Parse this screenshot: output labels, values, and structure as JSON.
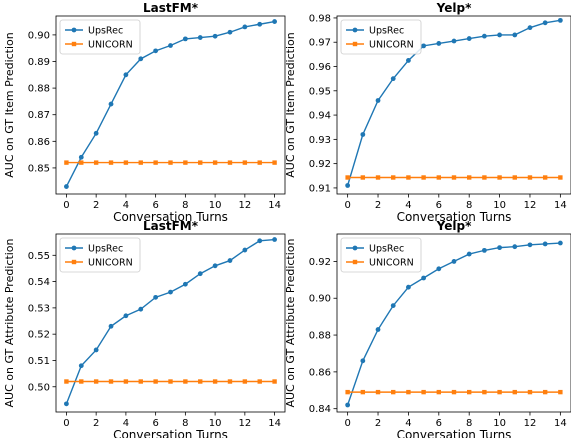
{
  "chart_data": [
    {
      "type": "line",
      "title": "LastFM*",
      "xlabel": "Conversation Turns",
      "ylabel": "AUC on GT Item Prediction",
      "x": [
        0,
        1,
        2,
        3,
        4,
        5,
        6,
        7,
        8,
        9,
        10,
        11,
        12,
        13,
        14
      ],
      "xticks": [
        0,
        2,
        4,
        6,
        8,
        10,
        12,
        14
      ],
      "xlim": [
        -0.7,
        14.7
      ],
      "yticks": [
        0.85,
        0.86,
        0.87,
        0.88,
        0.89,
        0.9
      ],
      "ytick_labels": [
        "0.85",
        "0.86",
        "0.87",
        "0.88",
        "0.89",
        "0.90"
      ],
      "ylim": [
        0.8402,
        0.9071
      ],
      "legend": "top-left",
      "grid": false,
      "series": [
        {
          "name": "UpsRec",
          "color": "#1f77b4",
          "marker": "circle",
          "values": [
            0.843,
            0.854,
            0.863,
            0.874,
            0.885,
            0.891,
            0.894,
            0.896,
            0.8985,
            0.899,
            0.8995,
            0.901,
            0.903,
            0.904,
            0.905
          ]
        },
        {
          "name": "UNICORN",
          "color": "#ff7f0e",
          "marker": "square",
          "values": [
            0.852,
            0.852,
            0.852,
            0.852,
            0.852,
            0.852,
            0.852,
            0.852,
            0.852,
            0.852,
            0.852,
            0.852,
            0.852,
            0.852,
            0.852
          ]
        }
      ]
    },
    {
      "type": "line",
      "title": "Yelp*",
      "xlabel": "Conversation Turns",
      "ylabel": "AUC on GT Item Prediction",
      "x": [
        0,
        1,
        2,
        3,
        4,
        5,
        6,
        7,
        8,
        9,
        10,
        11,
        12,
        13,
        14
      ],
      "xticks": [
        0,
        2,
        4,
        6,
        8,
        10,
        12,
        14
      ],
      "xlim": [
        -0.7,
        14.7
      ],
      "yticks": [
        0.91,
        0.92,
        0.93,
        0.94,
        0.95,
        0.96,
        0.97,
        0.98
      ],
      "ytick_labels": [
        "0.91",
        "0.92",
        "0.93",
        "0.94",
        "0.95",
        "0.96",
        "0.97",
        "0.98"
      ],
      "ylim": [
        0.9075,
        0.9808
      ],
      "legend": "top-left",
      "grid": false,
      "series": [
        {
          "name": "UpsRec",
          "color": "#1f77b4",
          "marker": "circle",
          "values": [
            0.911,
            0.932,
            0.946,
            0.955,
            0.9625,
            0.9685,
            0.9695,
            0.9705,
            0.9715,
            0.9725,
            0.973,
            0.973,
            0.976,
            0.978,
            0.979
          ]
        },
        {
          "name": "UNICORN",
          "color": "#ff7f0e",
          "marker": "square",
          "values": [
            0.9143,
            0.9143,
            0.9143,
            0.9143,
            0.9143,
            0.9143,
            0.9143,
            0.9143,
            0.9143,
            0.9143,
            0.9143,
            0.9143,
            0.9143,
            0.9143,
            0.9143
          ]
        }
      ]
    },
    {
      "type": "line",
      "title": "LastFM*",
      "xlabel": "Conversation Turns",
      "ylabel": "AUC on GT Attribute Prediction",
      "x": [
        0,
        1,
        2,
        3,
        4,
        5,
        6,
        7,
        8,
        9,
        10,
        11,
        12,
        13,
        14
      ],
      "xticks": [
        0,
        2,
        4,
        6,
        8,
        10,
        12,
        14
      ],
      "xlim": [
        -0.7,
        14.7
      ],
      "yticks": [
        0.5,
        0.51,
        0.52,
        0.53,
        0.54,
        0.55
      ],
      "ytick_labels": [
        "0.50",
        "0.51",
        "0.52",
        "0.53",
        "0.54",
        "0.55"
      ],
      "ylim": [
        0.4904,
        0.5581
      ],
      "legend": "top-left",
      "grid": false,
      "series": [
        {
          "name": "UpsRec",
          "color": "#1f77b4",
          "marker": "circle",
          "values": [
            0.4935,
            0.508,
            0.514,
            0.523,
            0.527,
            0.5295,
            0.534,
            0.536,
            0.539,
            0.543,
            0.546,
            0.548,
            0.552,
            0.5555,
            0.556
          ]
        },
        {
          "name": "UNICORN",
          "color": "#ff7f0e",
          "marker": "square",
          "values": [
            0.502,
            0.502,
            0.502,
            0.502,
            0.502,
            0.502,
            0.502,
            0.502,
            0.502,
            0.502,
            0.502,
            0.502,
            0.502,
            0.502,
            0.502
          ]
        }
      ]
    },
    {
      "type": "line",
      "title": "Yelp*",
      "xlabel": "Conversation Turns",
      "ylabel": "AUC on GT Attribute Prediction",
      "x": [
        0,
        1,
        2,
        3,
        4,
        5,
        6,
        7,
        8,
        9,
        10,
        11,
        12,
        13,
        14
      ],
      "xticks": [
        0,
        2,
        4,
        6,
        8,
        10,
        12,
        14
      ],
      "xlim": [
        -0.7,
        14.7
      ],
      "yticks": [
        0.84,
        0.86,
        0.88,
        0.9,
        0.92
      ],
      "ytick_labels": [
        "0.84",
        "0.86",
        "0.88",
        "0.90",
        "0.92"
      ],
      "ylim": [
        0.8382,
        0.9349
      ],
      "legend": "top-left",
      "grid": false,
      "series": [
        {
          "name": "UpsRec",
          "color": "#1f77b4",
          "marker": "circle",
          "values": [
            0.842,
            0.866,
            0.883,
            0.896,
            0.906,
            0.911,
            0.916,
            0.92,
            0.924,
            0.926,
            0.9275,
            0.928,
            0.929,
            0.9295,
            0.93
          ]
        },
        {
          "name": "UNICORN",
          "color": "#ff7f0e",
          "marker": "square",
          "values": [
            0.849,
            0.849,
            0.849,
            0.849,
            0.849,
            0.849,
            0.849,
            0.849,
            0.849,
            0.849,
            0.849,
            0.849,
            0.849,
            0.849,
            0.849
          ]
        }
      ]
    }
  ]
}
